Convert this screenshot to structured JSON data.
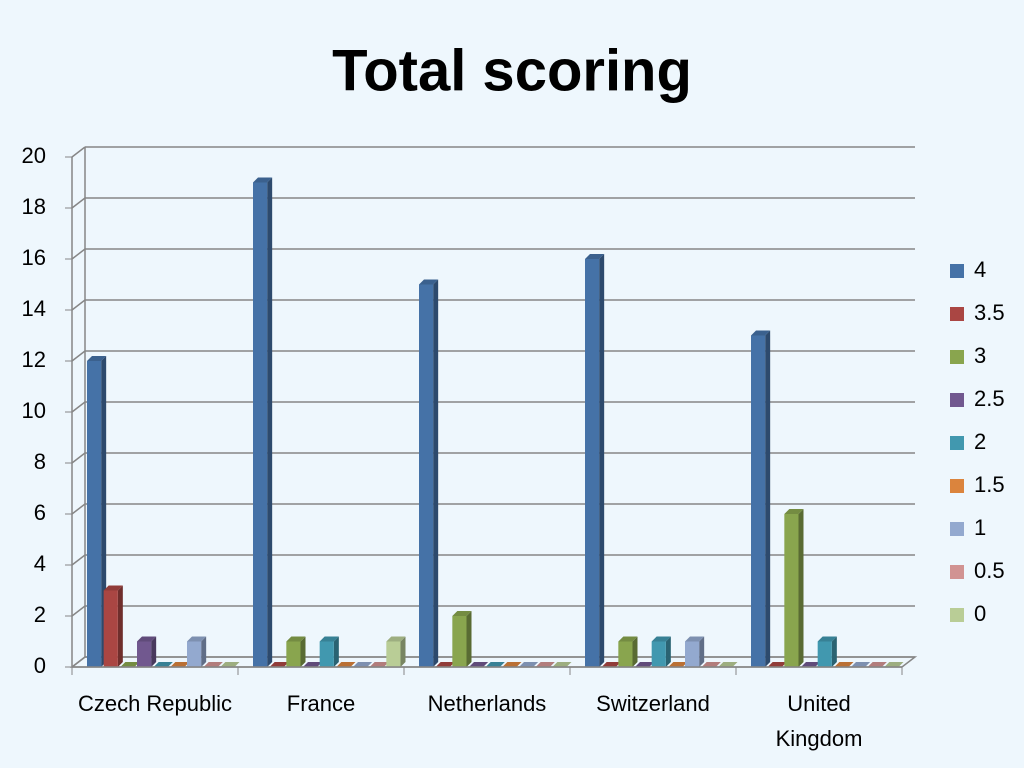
{
  "chart_data": {
    "type": "bar",
    "title": "Total scoring",
    "categories": [
      "Czech Republic",
      "France",
      "Netherlands",
      "Switzerland",
      "United Kingdom"
    ],
    "series": [
      {
        "name": "4",
        "color": "#4572a7",
        "values": [
          12,
          19,
          15,
          16,
          13
        ]
      },
      {
        "name": "3.5",
        "color": "#aa4643",
        "values": [
          3,
          0,
          0,
          0,
          0
        ]
      },
      {
        "name": "3",
        "color": "#89a54e",
        "values": [
          0,
          1,
          2,
          1,
          6
        ]
      },
      {
        "name": "2.5",
        "color": "#71588f",
        "values": [
          1,
          0,
          0,
          0,
          0
        ]
      },
      {
        "name": "2",
        "color": "#4198af",
        "values": [
          0,
          1,
          0,
          1,
          1
        ]
      },
      {
        "name": "1.5",
        "color": "#db843d",
        "values": [
          0,
          0,
          0,
          0,
          0
        ]
      },
      {
        "name": "1",
        "color": "#93a9cf",
        "values": [
          1,
          0,
          0,
          1,
          0
        ]
      },
      {
        "name": "0.5",
        "color": "#d19392",
        "values": [
          0,
          0,
          0,
          0,
          0
        ]
      },
      {
        "name": "0",
        "color": "#b9cd96",
        "values": [
          0,
          1,
          0,
          0,
          0
        ]
      }
    ],
    "ylim": [
      0,
      20
    ],
    "yticks": [
      0,
      2,
      4,
      6,
      8,
      10,
      12,
      14,
      16,
      18,
      20
    ],
    "grid": true,
    "legend": "right"
  }
}
